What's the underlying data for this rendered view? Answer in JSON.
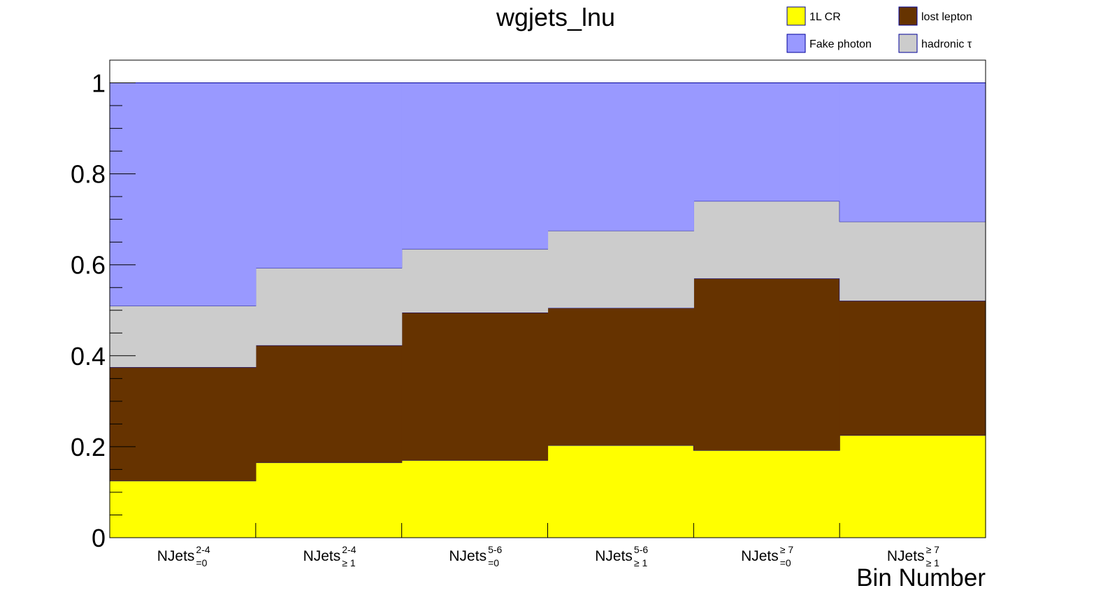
{
  "chart_data": {
    "type": "bar",
    "stacked": true,
    "title": "wgjets_lnu",
    "xlabel": "Bin Number",
    "ylabel": "",
    "ylim": [
      0,
      1.05
    ],
    "yticks": [
      "0",
      "0.2",
      "0.4",
      "0.6",
      "0.8",
      "1"
    ],
    "grid": false,
    "legend_position": "top-right",
    "categories": [
      {
        "base": "NJets",
        "sup": "2-4",
        "sub": "=0"
      },
      {
        "base": "NJets",
        "sup": "2-4",
        "sub": "≥ 1"
      },
      {
        "base": "NJets",
        "sup": "5-6",
        "sub": "=0"
      },
      {
        "base": "NJets",
        "sup": "5-6",
        "sub": "≥ 1"
      },
      {
        "base": "NJets",
        "sup": "≥ 7",
        "sub": "=0"
      },
      {
        "base": "NJets",
        "sup": "≥ 7",
        "sub": "≥ 1"
      }
    ],
    "series": [
      {
        "name": "1L CR",
        "color": "#ffff00",
        "values": [
          0.125,
          0.165,
          0.17,
          0.203,
          0.192,
          0.225
        ]
      },
      {
        "name": "lost lepton",
        "color": "#663300",
        "values": [
          0.25,
          0.258,
          0.325,
          0.302,
          0.378,
          0.296
        ]
      },
      {
        "name": "hadronic τ",
        "color": "#cccccc",
        "values": [
          0.135,
          0.17,
          0.14,
          0.17,
          0.17,
          0.174
        ]
      },
      {
        "name": "Fake photon",
        "color": "#9999ff",
        "values": [
          0.49,
          0.407,
          0.365,
          0.325,
          0.26,
          0.305
        ]
      }
    ],
    "legend_order": [
      "1L CR",
      "lost lepton",
      "Fake photon",
      "hadronic τ"
    ]
  }
}
